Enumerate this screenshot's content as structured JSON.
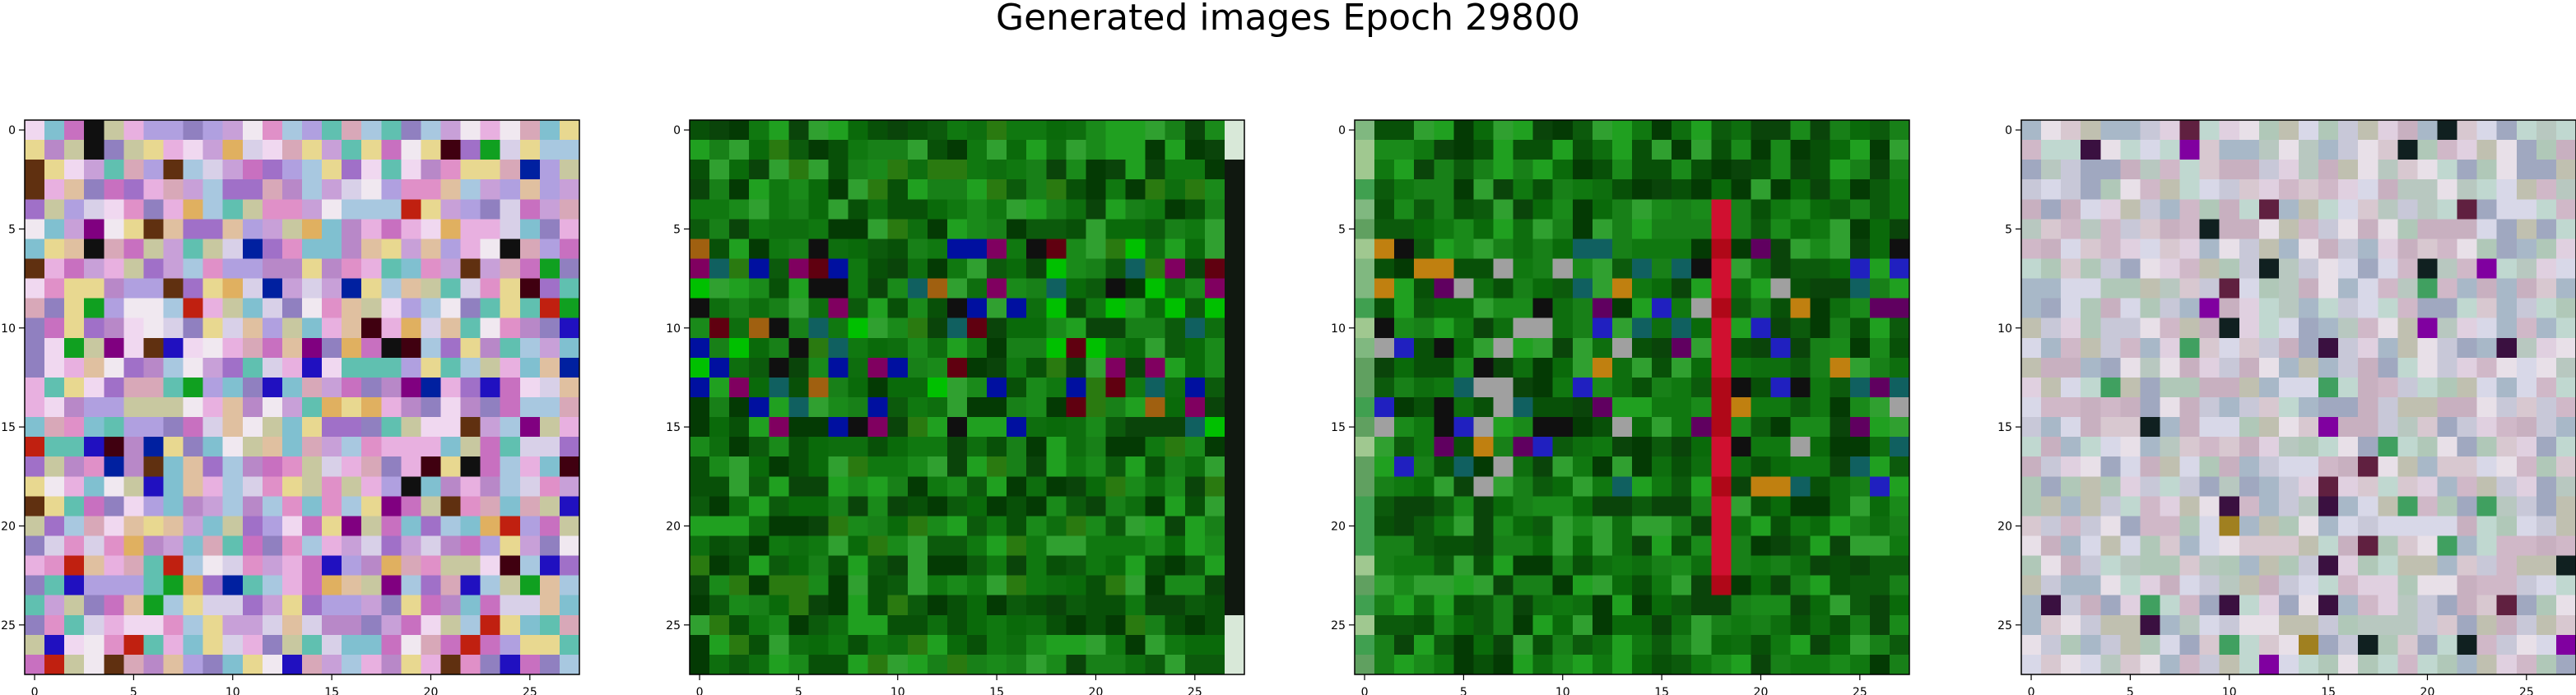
{
  "figure": {
    "title": "Generated images Epoch 29800"
  },
  "chart_data": [
    {
      "type": "heatmap",
      "title": "",
      "xlim": [
        -0.5,
        27.5
      ],
      "ylim": [
        27.5,
        -0.5
      ],
      "x_ticks": [
        0,
        5,
        10,
        15,
        20,
        25
      ],
      "y_ticks": [
        0,
        5,
        10,
        15,
        20,
        25
      ],
      "palette": [
        "#c8a0d8",
        "#e8b0e0",
        "#a070c8",
        "#d8d0e8",
        "#e0c0a0",
        "#80c0d0",
        "#f0d8f0",
        "#b888c8",
        "#e090c8",
        "#c8c8a0",
        "#9080c0",
        "#f0e8f0",
        "#d8a8b8",
        "#a8c8e0",
        "#60c0b0",
        "#c870c0",
        "#e8d890",
        "#b0a0e0"
      ],
      "accents": [
        "#2010c0",
        "#c02010",
        "#101010",
        "#400010",
        "#10a020",
        "#0020a0",
        "#800080",
        "#e0b060",
        "#603010"
      ],
      "texture": "pastel"
    },
    {
      "type": "heatmap",
      "title": "",
      "xlim": [
        -0.5,
        27.5
      ],
      "ylim": [
        27.5,
        -0.5
      ],
      "x_ticks": [
        0,
        5,
        10,
        15,
        20,
        25
      ],
      "y_ticks": [
        0,
        5,
        10,
        15,
        20,
        25
      ],
      "palette": [
        "#0a6a0a",
        "#107810",
        "#0c5a0c",
        "#1a8a1a",
        "#085008",
        "#20a020",
        "#0e6e0e",
        "#043a04",
        "#188018",
        "#2a7a10",
        "#0a440a",
        "#30a030"
      ],
      "accents": [
        "#0010a0",
        "#101010",
        "#800060",
        "#a06010",
        "#106060",
        "#600010",
        "#00c000"
      ],
      "texture": "green"
    },
    {
      "type": "heatmap",
      "title": "",
      "xlim": [
        -0.5,
        27.5
      ],
      "ylim": [
        27.5,
        -0.5
      ],
      "x_ticks": [
        0,
        5,
        10,
        15,
        20,
        25
      ],
      "y_ticks": [
        0,
        5,
        10,
        15,
        20,
        25
      ],
      "palette": [
        "#0a6a0a",
        "#107810",
        "#0c5a0c",
        "#1a8a1a",
        "#085008",
        "#20a020",
        "#0e6e0e",
        "#043a04",
        "#188018",
        "#0a440a",
        "#30a030"
      ],
      "accents": [
        "#2020c0",
        "#101010",
        "#c08010",
        "#106060",
        "#a0a0a0",
        "#600060"
      ],
      "texture": "green-stripe"
    },
    {
      "type": "heatmap",
      "title": "",
      "xlim": [
        -0.5,
        27.5
      ],
      "ylim": [
        27.5,
        -0.5
      ],
      "x_ticks": [
        0,
        5,
        10,
        15,
        20,
        25
      ],
      "y_ticks": [
        0,
        5,
        10,
        15,
        20,
        25
      ],
      "palette": [
        "#c8c8d8",
        "#d8c8d0",
        "#b8c8c0",
        "#c0d8d0",
        "#d0b8c8",
        "#a8b8c8",
        "#e0d0e0",
        "#c8b0c0",
        "#b0c8b8",
        "#d8d8e8",
        "#a0a8c0",
        "#c0c0b0",
        "#e8e0e8"
      ],
      "accents": [
        "#3a1040",
        "#102020",
        "#8000a0",
        "#40a060",
        "#a08020",
        "#602040"
      ],
      "texture": "muted"
    }
  ]
}
